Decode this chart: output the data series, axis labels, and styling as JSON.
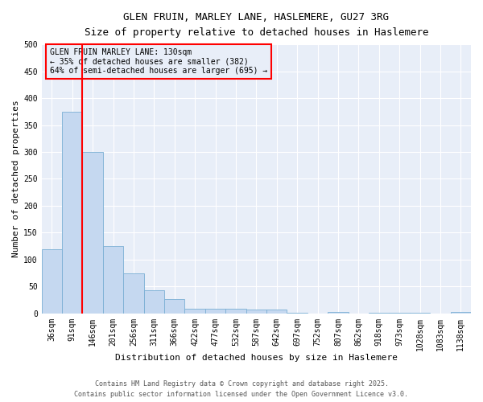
{
  "title_line1": "GLEN FRUIN, MARLEY LANE, HASLEMERE, GU27 3RG",
  "title_line2": "Size of property relative to detached houses in Haslemere",
  "xlabel": "Distribution of detached houses by size in Haslemere",
  "ylabel": "Number of detached properties",
  "annotation_line1": "GLEN FRUIN MARLEY LANE: 130sqm",
  "annotation_line2": "← 35% of detached houses are smaller (382)",
  "annotation_line3": "64% of semi-detached houses are larger (695) →",
  "footer1": "Contains HM Land Registry data © Crown copyright and database right 2025.",
  "footer2": "Contains public sector information licensed under the Open Government Licence v3.0.",
  "bar_color": "#c5d8f0",
  "bar_edge_color": "#7aafd4",
  "vline_color": "red",
  "annotation_box_edge_color": "red",
  "background_color": "#ffffff",
  "plot_bg_color": "#e8eef8",
  "grid_color": "#ffffff",
  "categories": [
    "36sqm",
    "91sqm",
    "146sqm",
    "201sqm",
    "256sqm",
    "311sqm",
    "366sqm",
    "422sqm",
    "477sqm",
    "532sqm",
    "587sqm",
    "642sqm",
    "697sqm",
    "752sqm",
    "807sqm",
    "862sqm",
    "918sqm",
    "973sqm",
    "1028sqm",
    "1083sqm",
    "1138sqm"
  ],
  "values": [
    120,
    375,
    300,
    125,
    74,
    43,
    27,
    8,
    9,
    9,
    7,
    7,
    2,
    0,
    3,
    0,
    1,
    2,
    1,
    0,
    3
  ],
  "ylim": [
    0,
    500
  ],
  "yticks": [
    0,
    50,
    100,
    150,
    200,
    250,
    300,
    350,
    400,
    450,
    500
  ],
  "vline_bar_index": 1,
  "title_fontsize": 9,
  "subtitle_fontsize": 8,
  "axis_label_fontsize": 8,
  "tick_fontsize": 7,
  "annotation_fontsize": 7,
  "footer_fontsize": 6
}
